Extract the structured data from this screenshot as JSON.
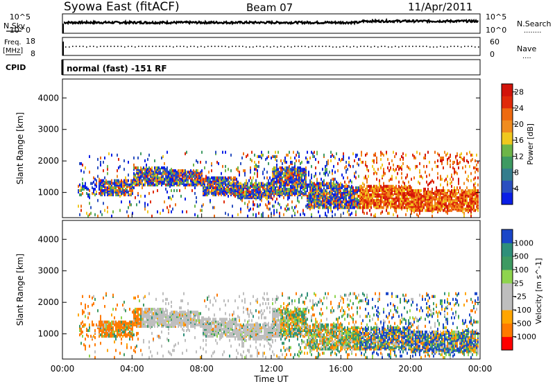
{
  "header": {
    "station": "Syowa East (fitACF)",
    "beam": "Beam 07",
    "date": "11/Apr/2011"
  },
  "strip_labels": {
    "nsky": "N.Sky",
    "freq_line1": "Freq.",
    "freq_line2": "[MHz]",
    "cpid": "CPID",
    "nsearch": "N.Search",
    "nave": "Nave",
    "nsky_dots": "",
    "nsearch_dots": "........",
    "nave_dots": "...."
  },
  "strip_ticks": {
    "nsky_top": "10^5",
    "nsky_bottom": "10^0",
    "nsearch_top": "10^5",
    "nsearch_bottom": "10^0",
    "freq_top": "18",
    "freq_bottom": "8",
    "nave_top": "60",
    "nave_bottom": "0"
  },
  "cpid_text": "normal (fast) -151 RF",
  "colors": {
    "power_scale": [
      "#0a1ee6",
      "#2a4fc0",
      "#347d8d",
      "#3e9a62",
      "#6db548",
      "#f0c81e",
      "#f08c1e",
      "#ee6a10",
      "#e02a0a",
      "#d2140a"
    ],
    "velocity_scale": [
      "#ff0000",
      "#ff7a00",
      "#ffa500",
      "#bebebe",
      "#bebebe",
      "#8ed44e",
      "#3e9a62",
      "#2f8f7a",
      "#1a46c8"
    ]
  },
  "chart_data": [
    {
      "type": "heatmap",
      "title": "Power",
      "ylabel": "Slant Range [km]",
      "ylim": [
        200,
        4600
      ],
      "yticks": [
        "1000",
        "2000",
        "3000",
        "4000"
      ],
      "colorbar_label": "Power [dB]",
      "colorbar_ticks": [
        "4",
        "8",
        "12",
        "16",
        "20",
        "24",
        "28"
      ],
      "colorbar_range": [
        0,
        30
      ],
      "grid": false
    },
    {
      "type": "heatmap",
      "title": "Velocity",
      "ylabel": "Slant Range [km]",
      "ylim": [
        200,
        4600
      ],
      "yticks": [
        "1000",
        "2000",
        "3000",
        "4000"
      ],
      "xlabel": "Time UT",
      "xticks": [
        "00:00",
        "04:00",
        "08:00",
        "12:00",
        "16:00",
        "20:00",
        "00:00"
      ],
      "colorbar_label": "Velocity [m s^-1]",
      "colorbar_ticks": [
        "1000",
        "500",
        "100",
        "25",
        "-25",
        "-100",
        "-500",
        "-1000"
      ],
      "grid": false
    }
  ]
}
